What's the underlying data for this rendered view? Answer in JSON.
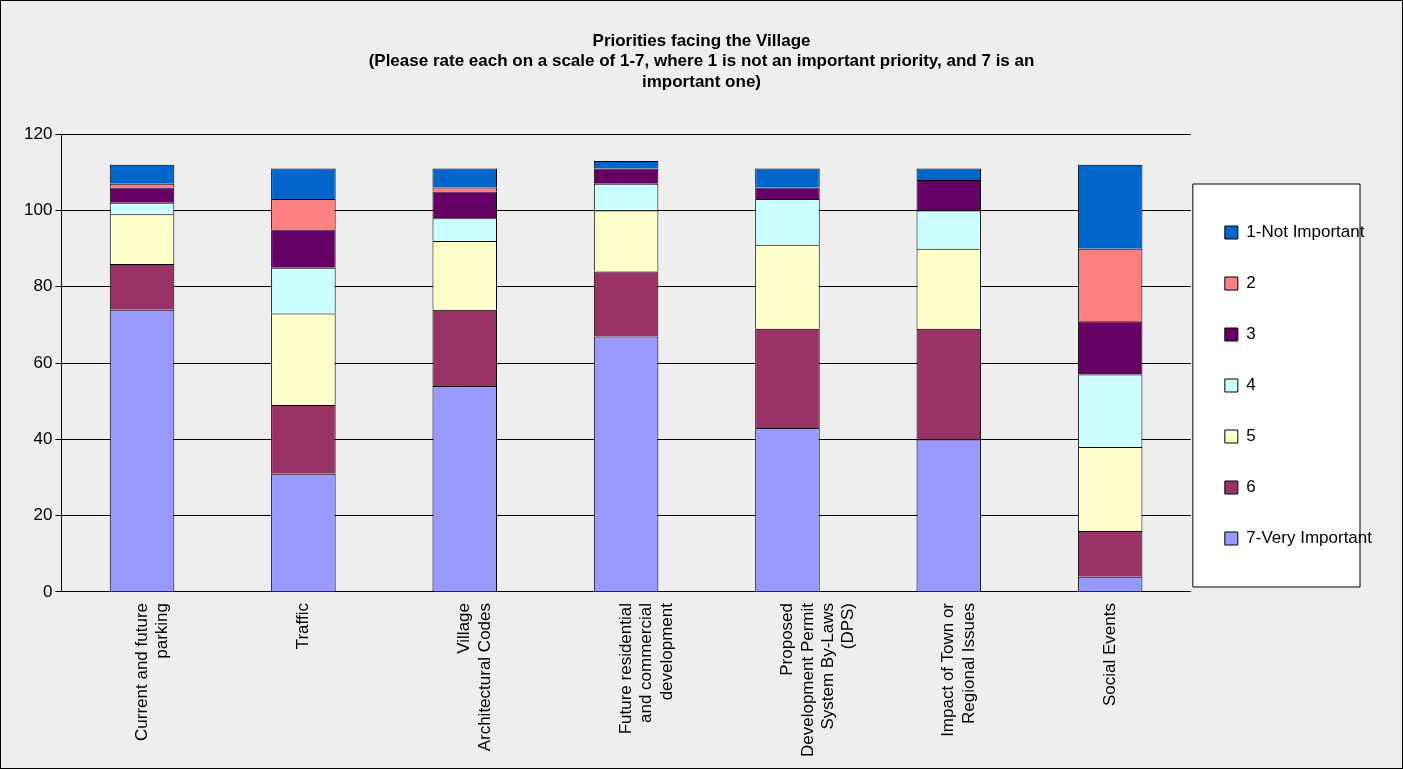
{
  "chart_data": {
    "type": "bar",
    "stacked": true,
    "title": "Priorities facing the Village\n(Please rate each on a scale of 1-7, where 1 is not an important priority, and 7 is an\nimportant one)",
    "categories": [
      "Current and future parking",
      "Traffic",
      "Village Architectural Codes",
      "Future residential and commercial development",
      "Proposed Development Permit System By-Laws (DPS)",
      "Impact of Town or Regional Issues",
      "Social Events"
    ],
    "series": [
      {
        "name": "7-Very Important",
        "color": "#9999ff",
        "values": [
          74,
          31,
          54,
          67,
          43,
          40,
          4
        ]
      },
      {
        "name": "6",
        "color": "#993366",
        "values": [
          12,
          18,
          20,
          17,
          26,
          29,
          12
        ]
      },
      {
        "name": "5",
        "color": "#ffffcc",
        "values": [
          13,
          24,
          18,
          16,
          22,
          21,
          22
        ]
      },
      {
        "name": "4",
        "color": "#ccffff",
        "values": [
          3,
          12,
          6,
          7,
          12,
          10,
          19
        ]
      },
      {
        "name": "3",
        "color": "#660066",
        "values": [
          4,
          10,
          7,
          4,
          3,
          8,
          14
        ]
      },
      {
        "name": "2",
        "color": "#ff8080",
        "values": [
          1,
          8,
          1,
          0,
          0,
          0,
          19
        ]
      },
      {
        "name": "1-Not Important",
        "color": "#0066cc",
        "values": [
          5,
          8,
          5,
          2,
          5,
          3,
          22
        ]
      }
    ],
    "ylim": [
      0,
      120
    ],
    "yticks": [
      0,
      20,
      40,
      60,
      80,
      100,
      120
    ],
    "grid": "y",
    "legend": "right"
  }
}
